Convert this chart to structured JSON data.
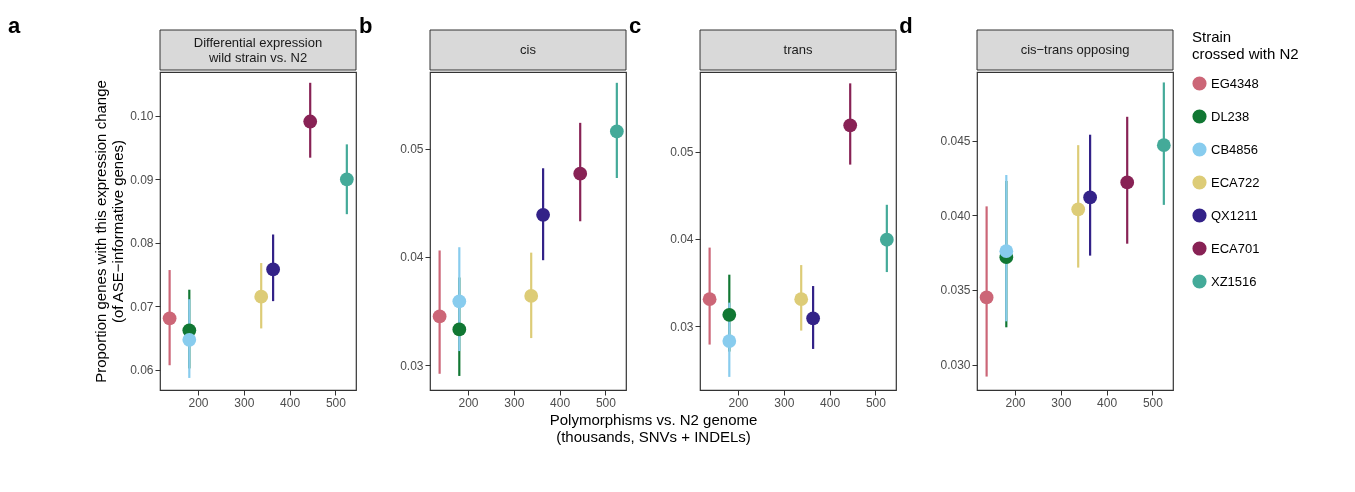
{
  "chart_data": [
    {
      "type": "scatter",
      "title": "Differential expression\nwild strain vs. N2",
      "annotations": [
        "a"
      ],
      "ylabel": "Proportion genes with this expression change\n(of ASE−informative genes)",
      "xlim": [
        117,
        545
      ],
      "xticks": [
        200,
        300,
        400,
        500
      ],
      "ylim": [
        0.0568,
        0.1069
      ],
      "yticks": [
        0.06,
        0.07,
        0.08,
        0.09,
        {
          "value": 0.1,
          "label": "0.10"
        }
      ],
      "grid": false,
      "marker": "circle",
      "series": [
        {
          "color": "#cc6677",
          "x": [
            138
          ],
          "values": [
            0.0681
          ],
          "errors": [
            [
              0.0607,
              0.0757
            ]
          ]
        },
        {
          "color": "#117733",
          "x": [
            181
          ],
          "values": [
            0.0662
          ],
          "errors": [
            [
              0.0602,
              0.0726
            ]
          ]
        },
        {
          "color": "#88ccee",
          "x": [
            181
          ],
          "values": [
            0.0647
          ],
          "errors": [
            [
              0.0587,
              0.0711
            ]
          ]
        },
        {
          "color": "#ddcc77",
          "x": [
            338
          ],
          "values": [
            0.0715
          ],
          "errors": [
            [
              0.0665,
              0.0768
            ]
          ]
        },
        {
          "color": "#332288",
          "x": [
            364
          ],
          "values": [
            0.0758
          ],
          "errors": [
            [
              0.0708,
              0.0813
            ]
          ]
        },
        {
          "color": "#882255",
          "x": [
            445
          ],
          "values": [
            0.0991
          ],
          "errors": [
            [
              0.0934,
              0.1052
            ]
          ]
        },
        {
          "color": "#44aa99",
          "x": [
            525
          ],
          "values": [
            0.09
          ],
          "errors": [
            [
              0.0845,
              0.0955
            ]
          ]
        }
      ]
    },
    {
      "type": "scatter",
      "title": "cis",
      "annotations": [
        "b"
      ],
      "xlabel": "Polymorphisms vs. N2 genome\n(thousands, SNVs + INDELs)",
      "xlim": [
        117,
        545
      ],
      "xticks": [
        200,
        300,
        400,
        500
      ],
      "ylim": [
        0.0277,
        0.0571
      ],
      "yticks": [
        0.03,
        0.04,
        0.05
      ],
      "grid": false,
      "marker": "circle",
      "series": [
        {
          "color": "#cc6677",
          "x": [
            138
          ],
          "values": [
            0.0345
          ],
          "errors": [
            [
              0.0292,
              0.0406
            ]
          ]
        },
        {
          "color": "#117733",
          "x": [
            181
          ],
          "values": [
            0.0333
          ],
          "errors": [
            [
              0.029,
              0.0381
            ]
          ]
        },
        {
          "color": "#88ccee",
          "x": [
            181
          ],
          "values": [
            0.0359
          ],
          "errors": [
            [
              0.0313,
              0.0409
            ]
          ]
        },
        {
          "color": "#ddcc77",
          "x": [
            338
          ],
          "values": [
            0.0364
          ],
          "errors": [
            [
              0.0325,
              0.0404
            ]
          ]
        },
        {
          "color": "#332288",
          "x": [
            364
          ],
          "values": [
            0.0439
          ],
          "errors": [
            [
              0.0397,
              0.0482
            ]
          ]
        },
        {
          "color": "#882255",
          "x": [
            445
          ],
          "values": [
            0.0477
          ],
          "errors": [
            [
              0.0433,
              0.0524
            ]
          ]
        },
        {
          "color": "#44aa99",
          "x": [
            525
          ],
          "values": [
            0.0516
          ],
          "errors": [
            [
              0.0473,
              0.0561
            ]
          ]
        }
      ]
    },
    {
      "type": "scatter",
      "title": "trans",
      "annotations": [
        "c"
      ],
      "xlim": [
        117,
        545
      ],
      "xticks": [
        200,
        300,
        400,
        500
      ],
      "ylim": [
        0.0227,
        0.0591
      ],
      "yticks": [
        0.03,
        0.04,
        0.05
      ],
      "grid": false,
      "marker": "circle",
      "series": [
        {
          "color": "#cc6677",
          "x": [
            138
          ],
          "values": [
            0.0331
          ],
          "errors": [
            [
              0.0279,
              0.039
            ]
          ]
        },
        {
          "color": "#117733",
          "x": [
            181
          ],
          "values": [
            0.0313
          ],
          "errors": [
            [
              0.0271,
              0.0359
            ]
          ]
        },
        {
          "color": "#88ccee",
          "x": [
            181
          ],
          "values": [
            0.0283
          ],
          "errors": [
            [
              0.0242,
              0.0327
            ]
          ]
        },
        {
          "color": "#ddcc77",
          "x": [
            338
          ],
          "values": [
            0.0331
          ],
          "errors": [
            [
              0.0295,
              0.037
            ]
          ]
        },
        {
          "color": "#332288",
          "x": [
            364
          ],
          "values": [
            0.0309
          ],
          "errors": [
            [
              0.0274,
              0.0346
            ]
          ]
        },
        {
          "color": "#882255",
          "x": [
            445
          ],
          "values": [
            0.053
          ],
          "errors": [
            [
              0.0485,
              0.0578
            ]
          ]
        },
        {
          "color": "#44aa99",
          "x": [
            525
          ],
          "values": [
            0.0399
          ],
          "errors": [
            [
              0.0362,
              0.0439
            ]
          ]
        }
      ]
    },
    {
      "type": "scatter",
      "title": "cis−trans opposing",
      "annotations": [
        "d"
      ],
      "xlim": [
        117,
        545
      ],
      "xticks": [
        200,
        300,
        400,
        500
      ],
      "ylim": [
        0.0283,
        0.0496
      ],
      "yticks": [
        {
          "value": 0.03,
          "label": "0.030"
        },
        {
          "value": 0.035,
          "label": "0.035"
        },
        {
          "value": 0.04,
          "label": "0.040"
        },
        {
          "value": 0.045,
          "label": "0.045"
        }
      ],
      "grid": false,
      "marker": "circle",
      "legend": "right",
      "legend_title": "Strain\ncrossed with N2",
      "series": [
        {
          "name": "EG4348",
          "color": "#cc6677",
          "x": [
            138
          ],
          "values": [
            0.0345
          ],
          "errors": [
            [
              0.0292,
              0.0406
            ]
          ]
        },
        {
          "name": "DL238",
          "color": "#117733",
          "x": [
            181
          ],
          "values": [
            0.0372
          ],
          "errors": [
            [
              0.0325,
              0.0423
            ]
          ]
        },
        {
          "name": "CB4856",
          "color": "#88ccee",
          "x": [
            181
          ],
          "values": [
            0.0376
          ],
          "errors": [
            [
              0.0329,
              0.0427
            ]
          ]
        },
        {
          "name": "ECA722",
          "color": "#ddcc77",
          "x": [
            338
          ],
          "values": [
            0.0404
          ],
          "errors": [
            [
              0.0365,
              0.0447
            ]
          ]
        },
        {
          "name": "QX1211",
          "color": "#332288",
          "x": [
            364
          ],
          "values": [
            0.0412
          ],
          "errors": [
            [
              0.0373,
              0.0454
            ]
          ]
        },
        {
          "name": "ECA701",
          "color": "#882255",
          "x": [
            445
          ],
          "values": [
            0.0422
          ],
          "errors": [
            [
              0.0381,
              0.0466
            ]
          ]
        },
        {
          "name": "XZ1516",
          "color": "#44aa99",
          "x": [
            525
          ],
          "values": [
            0.0447
          ],
          "errors": [
            [
              0.0407,
              0.0489
            ]
          ]
        }
      ]
    }
  ]
}
